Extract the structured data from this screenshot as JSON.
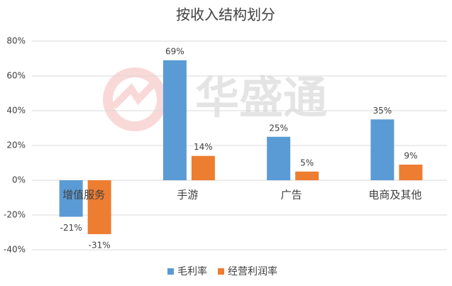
{
  "chart_data": {
    "type": "bar",
    "title": "按收入结构划分",
    "watermark": "华盛通",
    "categories": [
      "增值服务",
      "手游",
      "广告",
      "电商及其他"
    ],
    "series": [
      {
        "name": "毛利率",
        "color": "#5b9bd5",
        "values": [
          -21,
          69,
          25,
          35
        ],
        "value_labels": [
          "-21%",
          "69%",
          "25%",
          "35%"
        ]
      },
      {
        "name": "经营利润率",
        "color": "#ed7d31",
        "values": [
          -31,
          14,
          5,
          9
        ],
        "value_labels": [
          "-31%",
          "14%",
          "5%",
          "9%"
        ]
      }
    ],
    "ylim": [
      -40,
      80
    ],
    "yticks": [
      {
        "value": -40,
        "label": "-40%"
      },
      {
        "value": -20,
        "label": "-20%"
      },
      {
        "value": 0,
        "label": "0%"
      },
      {
        "value": 20,
        "label": "20%"
      },
      {
        "value": 40,
        "label": "40%"
      },
      {
        "value": 60,
        "label": "60%"
      },
      {
        "value": 80,
        "label": "80%"
      }
    ],
    "grid": true,
    "legend": "bottom"
  }
}
